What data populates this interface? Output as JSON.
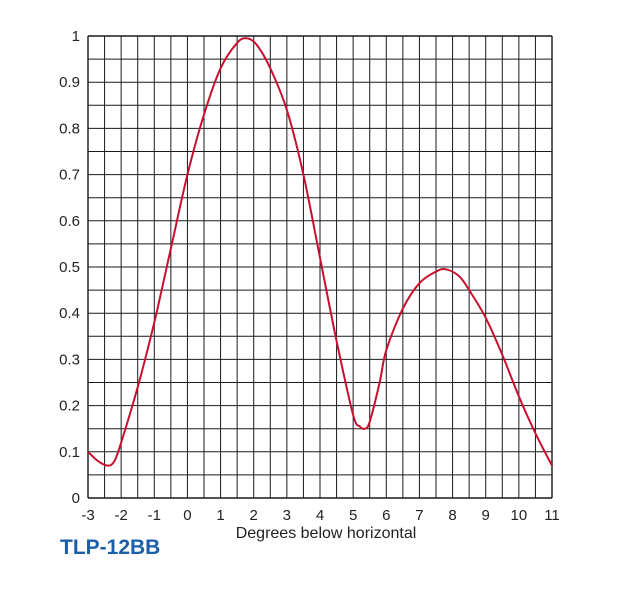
{
  "product_label": "TLP-12BB",
  "colors": {
    "curve": "#c8102e",
    "grid": "#1a1a1a",
    "label": "#1a5fa8"
  },
  "chart_data": {
    "type": "line",
    "title": "",
    "xlabel": "Degrees below horizontal",
    "ylabel": "",
    "xlim": [
      -3,
      11
    ],
    "ylim": [
      0,
      1
    ],
    "x_ticks": [
      "-3",
      "-2",
      "-1",
      "0",
      "1",
      "2",
      "3",
      "4",
      "5",
      "6",
      "7",
      "8",
      "9",
      "10",
      "11"
    ],
    "y_ticks": [
      "0",
      "0.1",
      "0.2",
      "0.3",
      "0.4",
      "0.5",
      "0.6",
      "0.7",
      "0.8",
      "0.9",
      "1"
    ],
    "grid": true,
    "series": [
      {
        "x": [
          -3,
          -2.7,
          -2.4,
          -2.2,
          -2,
          -1.5,
          -1,
          -0.5,
          0,
          0.5,
          1,
          1.5,
          1.8,
          2.1,
          2.5,
          3,
          3.5,
          4,
          4.5,
          5,
          5.2,
          5.35,
          5.5,
          5.8,
          6,
          6.5,
          7,
          7.5,
          7.8,
          8.2,
          8.5,
          9,
          9.5,
          10,
          10.5,
          11
        ],
        "y": [
          0.1,
          0.08,
          0.07,
          0.08,
          0.12,
          0.24,
          0.38,
          0.54,
          0.7,
          0.83,
          0.93,
          0.985,
          0.995,
          0.98,
          0.93,
          0.84,
          0.7,
          0.52,
          0.34,
          0.18,
          0.155,
          0.15,
          0.165,
          0.25,
          0.32,
          0.41,
          0.465,
          0.49,
          0.495,
          0.48,
          0.45,
          0.39,
          0.31,
          0.22,
          0.14,
          0.07
        ]
      }
    ]
  }
}
